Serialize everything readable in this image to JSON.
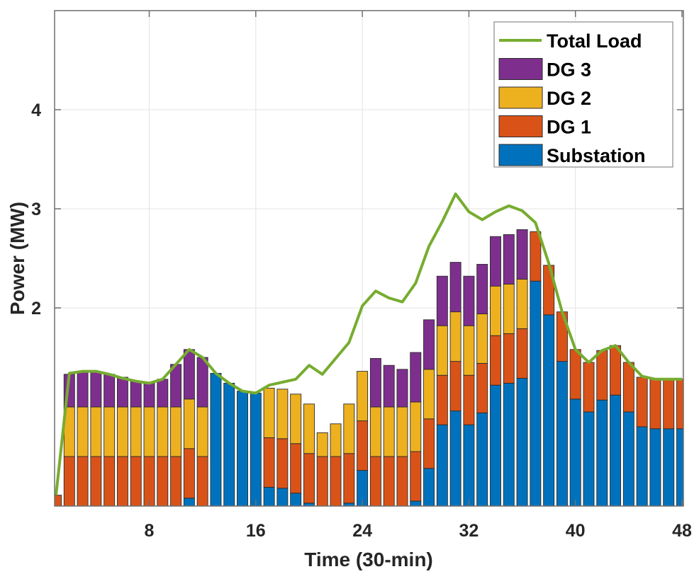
{
  "chart_data": {
    "type": "bar",
    "stacked": true,
    "title": "",
    "xlabel": "Time (30-min)",
    "ylabel": "Power (MW)",
    "xlim": [
      1,
      48
    ],
    "ylim": [
      0,
      5
    ],
    "xticks": [
      8,
      16,
      24,
      32,
      40,
      48
    ],
    "xtick_labels": [
      "8",
      "16",
      "24",
      "32",
      "40",
      "48"
    ],
    "yticks": [
      2,
      3,
      4
    ],
    "ytick_labels": [
      "2",
      "3",
      "4"
    ],
    "grid": true,
    "legend_position": "top-right",
    "x": [
      1,
      2,
      3,
      4,
      5,
      6,
      7,
      8,
      9,
      10,
      11,
      12,
      13,
      14,
      15,
      16,
      17,
      18,
      19,
      20,
      21,
      22,
      23,
      24,
      25,
      26,
      27,
      28,
      29,
      30,
      31,
      32,
      33,
      34,
      35,
      36,
      37,
      38,
      39,
      40,
      41,
      42,
      43,
      44,
      45,
      46,
      47,
      48
    ],
    "series": [
      {
        "name": "Substation",
        "kind": "bar",
        "color": "#0072BD",
        "values": [
          0,
          0,
          0,
          0,
          0,
          0,
          0,
          0,
          0,
          0,
          0.08,
          0,
          1.34,
          1.24,
          1.16,
          1.14,
          0.19,
          0.18,
          0.13,
          0.03,
          0,
          0,
          0.03,
          0.36,
          0,
          0,
          0,
          0.05,
          0.38,
          0.82,
          0.96,
          0.82,
          0.94,
          1.22,
          1.24,
          1.29,
          2.27,
          1.93,
          1.46,
          1.08,
          0.95,
          1.07,
          1.12,
          0.95,
          0.8,
          0.78,
          0.78,
          0.78
        ]
      },
      {
        "name": "DG 1",
        "kind": "bar",
        "color": "#D95319",
        "values": [
          0.11,
          0.5,
          0.5,
          0.5,
          0.5,
          0.5,
          0.5,
          0.5,
          0.5,
          0.5,
          0.5,
          0.5,
          0,
          0,
          0,
          0,
          0.5,
          0.5,
          0.5,
          0.5,
          0.5,
          0.5,
          0.5,
          0.5,
          0.5,
          0.5,
          0.5,
          0.5,
          0.5,
          0.5,
          0.5,
          0.5,
          0.5,
          0.5,
          0.5,
          0.5,
          0.5,
          0.5,
          0.5,
          0.5,
          0.5,
          0.5,
          0.5,
          0.5,
          0.5,
          0.5,
          0.5,
          0.5
        ]
      },
      {
        "name": "DG 2",
        "kind": "bar",
        "color": "#EDB120",
        "values": [
          0,
          0.5,
          0.5,
          0.5,
          0.5,
          0.5,
          0.5,
          0.5,
          0.5,
          0.5,
          0.5,
          0.5,
          0,
          0,
          0,
          0,
          0.5,
          0.5,
          0.5,
          0.5,
          0.24,
          0.33,
          0.5,
          0.5,
          0.5,
          0.5,
          0.5,
          0.5,
          0.5,
          0.5,
          0.5,
          0.5,
          0.5,
          0.5,
          0.5,
          0.5,
          0,
          0,
          0,
          0,
          0,
          0,
          0,
          0,
          0,
          0,
          0,
          0
        ]
      },
      {
        "name": "DG 3",
        "kind": "bar",
        "color": "#7E2F8E",
        "values": [
          0,
          0.33,
          0.35,
          0.35,
          0.33,
          0.3,
          0.26,
          0.24,
          0.28,
          0.43,
          0.5,
          0.5,
          0,
          0,
          0,
          0,
          0,
          0,
          0,
          0,
          0,
          0,
          0,
          0,
          0.49,
          0.42,
          0.38,
          0.5,
          0.5,
          0.5,
          0.5,
          0.5,
          0.5,
          0.5,
          0.5,
          0.5,
          0,
          0,
          0,
          0,
          0,
          0,
          0,
          0,
          0,
          0,
          0,
          0
        ]
      },
      {
        "name": "Total Load",
        "kind": "line",
        "color": "#77AC30",
        "values": [
          0.11,
          1.34,
          1.36,
          1.36,
          1.33,
          1.29,
          1.26,
          1.24,
          1.28,
          1.43,
          1.58,
          1.5,
          1.34,
          1.24,
          1.16,
          1.14,
          1.22,
          1.25,
          1.28,
          1.42,
          1.33,
          1.49,
          1.65,
          2.02,
          2.17,
          2.1,
          2.06,
          2.25,
          2.62,
          2.87,
          3.15,
          2.97,
          2.89,
          2.97,
          3.03,
          2.98,
          2.86,
          2.45,
          1.96,
          1.58,
          1.45,
          1.57,
          1.62,
          1.45,
          1.31,
          1.28,
          1.28,
          1.28
        ]
      }
    ],
    "legend": [
      "Total Load",
      "DG 3",
      "DG 2",
      "DG 1",
      "Substation"
    ]
  }
}
